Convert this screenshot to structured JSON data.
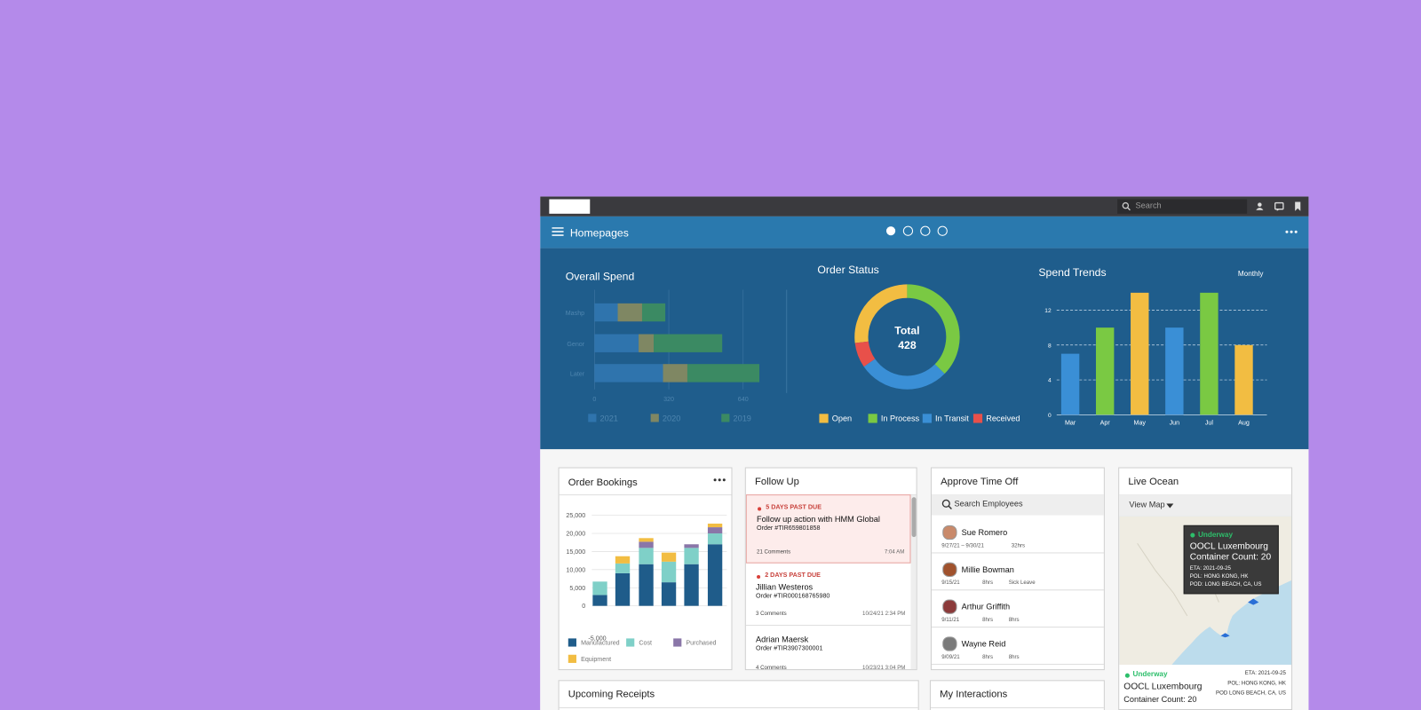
{
  "topbar": {
    "search": "Search"
  },
  "header": {
    "title": "Homepages"
  },
  "chart_data": [
    {
      "type": "hbar",
      "title": "Overall Spend",
      "categories": [
        "Mashp",
        "Genor",
        "Later"
      ],
      "series": [
        {
          "name": "2021",
          "color": "#2f74ad",
          "values": [
            100,
            190,
            295
          ]
        },
        {
          "name": "2020",
          "color": "#7f8763",
          "values": [
            105,
            65,
            105
          ]
        },
        {
          "name": "2019",
          "color": "#3b8a63",
          "values": [
            100,
            295,
            310
          ]
        }
      ],
      "xlim": [
        0,
        720
      ],
      "xticks": [
        0,
        320,
        640
      ],
      "grid": true
    },
    {
      "type": "donut",
      "title": "Order Status",
      "center_label": "Total",
      "total": 428,
      "categories": [
        "Open",
        "In Process",
        "In Transit",
        "Received"
      ],
      "values": [
        115,
        160,
        120,
        33
      ],
      "colors": [
        "#f2bd42",
        "#7ac943",
        "#3a8fd6",
        "#e8504a"
      ]
    },
    {
      "type": "bar",
      "title": "Spend Trends",
      "period": "Monthly",
      "categories": [
        "Mar",
        "Apr",
        "May",
        "Jun",
        "Jul",
        "Aug"
      ],
      "values": [
        7,
        10,
        14,
        10,
        14,
        8
      ],
      "colors": [
        "#3a8fd6",
        "#7ac943",
        "#f2bd42",
        "#3a8fd6",
        "#7ac943",
        "#f2bd42"
      ],
      "ylim": [
        0,
        14
      ],
      "yticks": [
        0,
        4,
        8,
        12
      ],
      "grid": true
    },
    {
      "type": "stacked-bar",
      "title": "Order Bookings",
      "categories": [
        null,
        null,
        null,
        null,
        null,
        null
      ],
      "series": [
        {
          "name": "Manufactured",
          "color": "#1f5c8a",
          "values": [
            3000,
            9000,
            11500,
            6500,
            11500,
            17000
          ]
        },
        {
          "name": "Cost",
          "color": "#7fd0c8",
          "values": [
            3700,
            2700,
            4500,
            5700,
            4500,
            3000
          ]
        },
        {
          "name": "Purchased",
          "color": "#8a76a8",
          "values": [
            0,
            0,
            1700,
            0,
            1000,
            1700
          ]
        },
        {
          "name": "Equipment",
          "color": "#f2bd42",
          "values": [
            0,
            2000,
            1000,
            2500,
            0,
            1000
          ]
        }
      ],
      "ylim": [
        -5000,
        25000
      ],
      "yticks": [
        {
          "value": -5000,
          "label": "-5,000"
        },
        0,
        {
          "value": 5000,
          "label": "5,000"
        },
        {
          "value": 10000,
          "label": "10,000"
        },
        {
          "value": 15000,
          "label": "15,000"
        },
        {
          "value": 20000,
          "label": "20,000"
        },
        {
          "value": 25000,
          "label": "25,000"
        }
      ],
      "grid": true
    }
  ],
  "follow_up": {
    "title": "Follow Up",
    "items": [
      {
        "due": "5 DAYS PAST DUE",
        "title": "Follow up action with HMM Global",
        "order": "Order #TIR659801858",
        "comments": "21 Comments",
        "time": "7:04 AM"
      },
      {
        "due": "2 DAYS PAST DUE",
        "title": "Jillian Westeros",
        "order": "Order #TIR000168765980",
        "comments": "3 Comments",
        "time": "10/24/21 2:34 PM"
      },
      {
        "title": "Adrian Maersk",
        "order": "Order #TIR3907300001",
        "comments": "4 Comments",
        "time": "10/23/21 3:04 PM"
      }
    ]
  },
  "approve_time_off": {
    "title": "Approve Time Off",
    "search": "Search Employees",
    "people": [
      {
        "name": "Sue Romero",
        "date": "9/27/21 – 9/30/21",
        "hours": "32hrs"
      },
      {
        "name": "Millie Bowman",
        "date": "9/15/21",
        "hours": "8hrs",
        "type": "Sick Leave"
      },
      {
        "name": "Arthur Griffith",
        "date": "9/11/21",
        "hours": "8hrs",
        "type": "8hrs"
      },
      {
        "name": "Wayne Reid",
        "date": "9/09/21",
        "hours": "8hrs",
        "type": "8hrs"
      }
    ]
  },
  "live_ocean": {
    "title": "Live Ocean",
    "view": "View Map",
    "tooltip": {
      "status": "Underway",
      "name": "OOCL Luxembourg",
      "count": "Container Count: 20",
      "eta": "ETA: 2021-09-25",
      "pol": "POL: HONG KONG, HK",
      "pod": "POD: LONG BEACH, CA, US"
    },
    "detail": {
      "status": "Underway",
      "name": "OOCL Luxembourg",
      "count": "Container Count: 20",
      "eta": "ETA: 2021-09-25",
      "pol": "POL: HONG KONG, HK",
      "pod": "POD LONG BEACH, CA, US"
    }
  },
  "upcoming_receipts": {
    "title": "Upcoming Receipts"
  },
  "my_interactions": {
    "title": "My Interactions"
  }
}
